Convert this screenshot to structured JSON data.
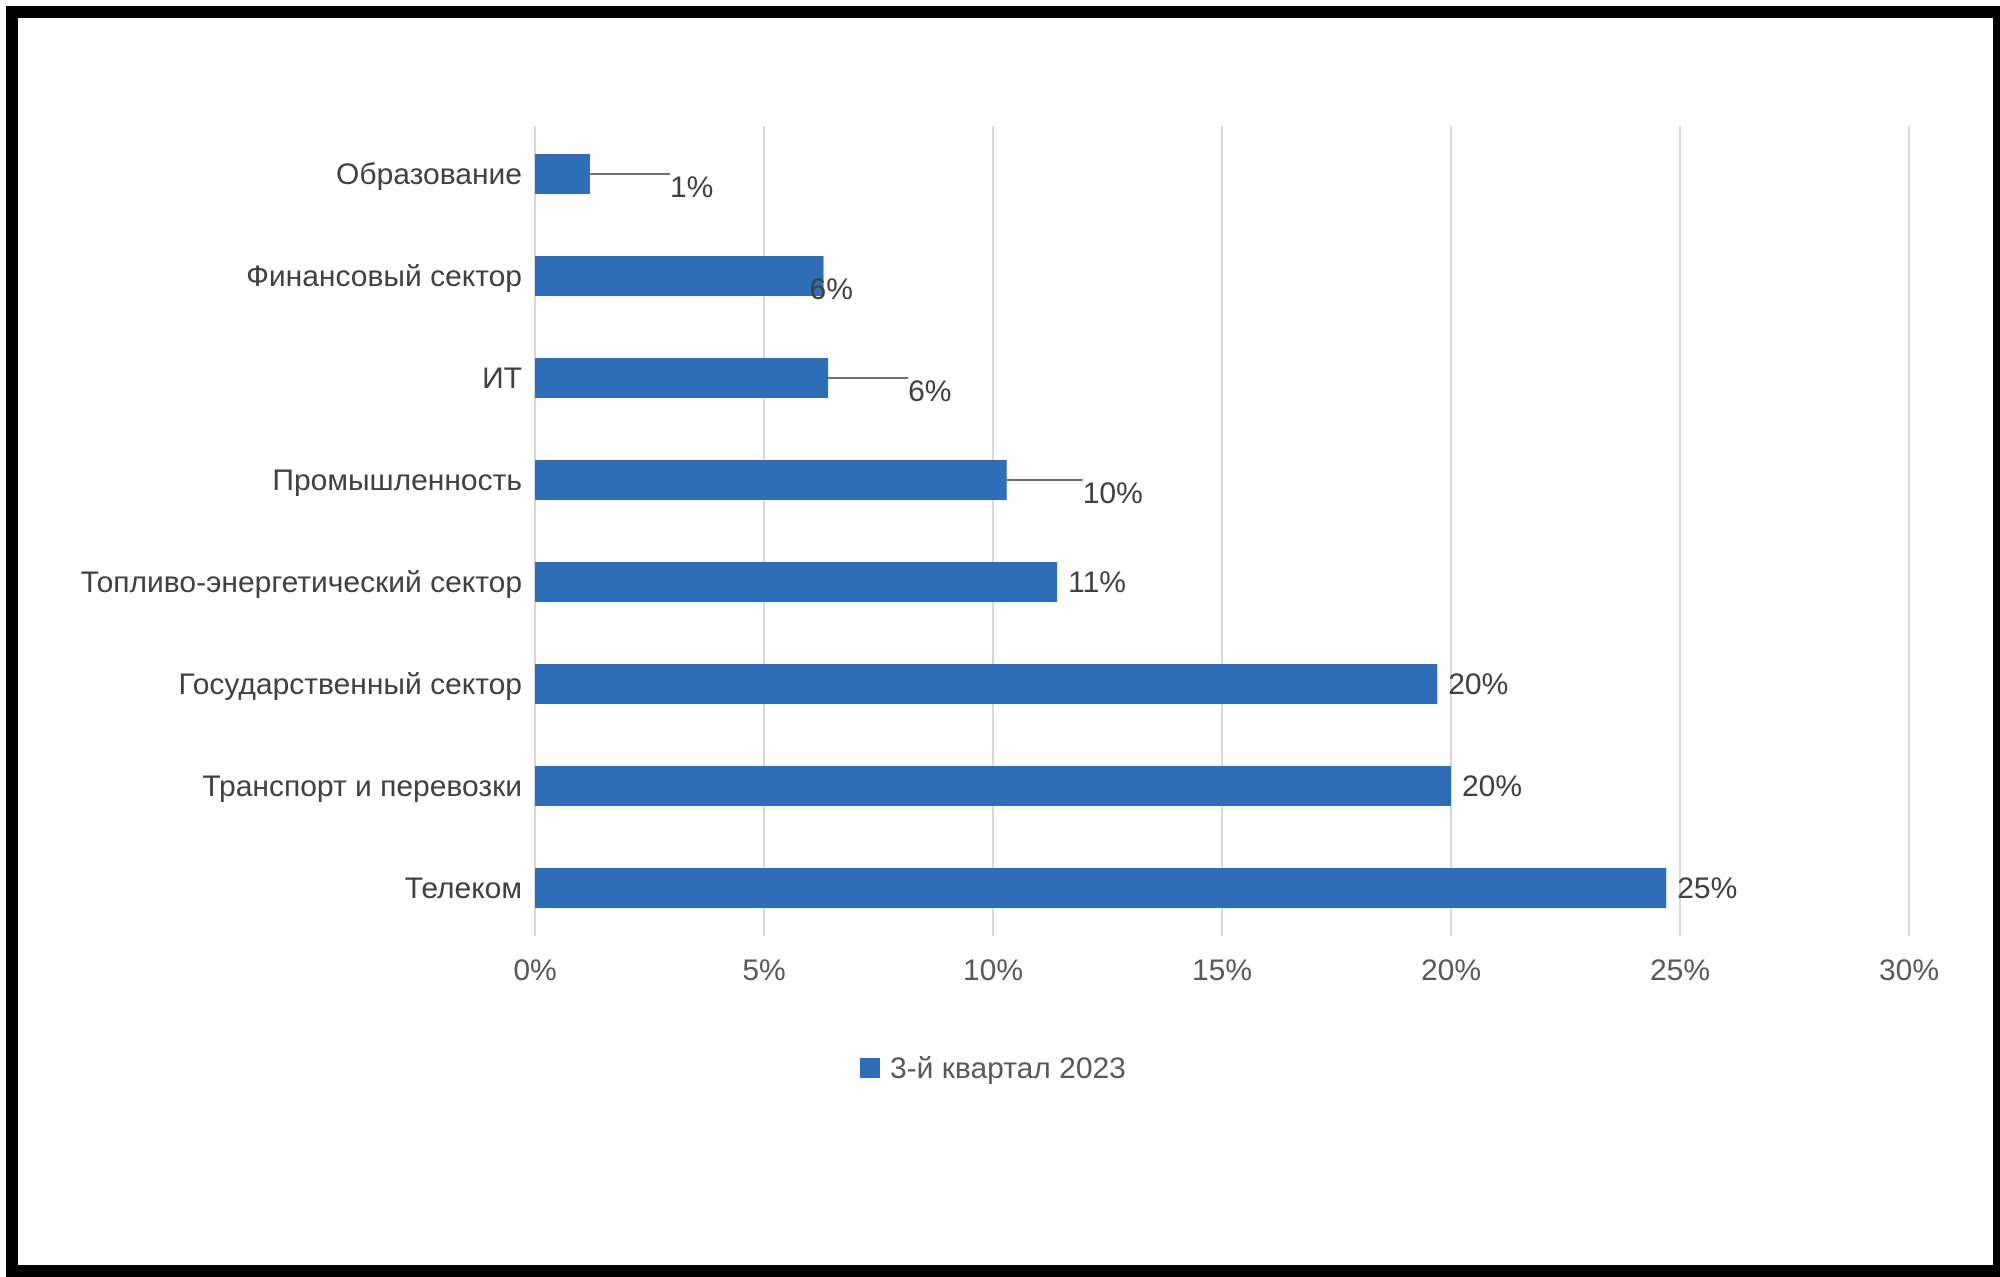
{
  "chart_data": {
    "type": "bar",
    "orientation": "horizontal",
    "categories": [
      "Образование",
      "Финансовый сектор",
      "ИТ",
      "Промышленность",
      "Топливо-энергетический сектор",
      "Государственный сектор",
      "Транспорт и перевозки",
      "Телеком"
    ],
    "series": [
      {
        "name": "3-й квартал 2023",
        "color": "#2E6DB7",
        "values": [
          1.2,
          6.3,
          6.4,
          10.3,
          11.4,
          19.7,
          20.0,
          24.7
        ],
        "labels": [
          "1%",
          "6%",
          "6%",
          "10%",
          "11%",
          "20%",
          "20%",
          "25%"
        ]
      }
    ],
    "xlim": [
      0,
      30
    ],
    "x_ticks": [
      "0%",
      "5%",
      "10%",
      "15%",
      "20%",
      "25%",
      "30%"
    ],
    "grid": true,
    "legend_position": "bottom"
  }
}
